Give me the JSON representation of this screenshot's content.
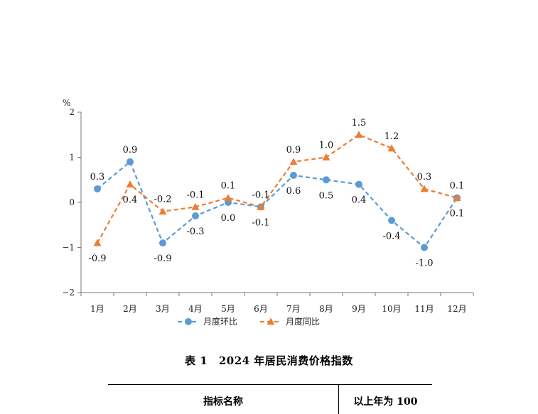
{
  "chart_data": {
    "type": "line",
    "ylabel": "%",
    "ylim": [
      -2,
      2
    ],
    "yticks": [
      "2",
      "1",
      "0",
      "−1",
      "−2"
    ],
    "yticks_values": [
      2,
      1,
      0,
      -1,
      -2
    ],
    "categories": [
      "1月",
      "2月",
      "3月",
      "4月",
      "5月",
      "6月",
      "7月",
      "8月",
      "9月",
      "10月",
      "11月",
      "12月"
    ],
    "series": [
      {
        "name": "月度环比",
        "color": "#5b9bd5",
        "marker": "circle",
        "values": [
          0.3,
          0.9,
          -0.9,
          -0.3,
          0.0,
          -0.1,
          0.6,
          0.5,
          0.4,
          -0.4,
          -1.0,
          0.1
        ],
        "labels": [
          "0.3",
          "0.9",
          "-0.9",
          "-0.3",
          "0.0",
          "-0.1",
          "0.6",
          "0.5",
          "0.4",
          "-0.4",
          "-1.0",
          "0.1"
        ]
      },
      {
        "name": "月度同比",
        "color": "#ed7d31",
        "marker": "triangle",
        "values": [
          -0.9,
          0.4,
          -0.2,
          -0.1,
          0.1,
          -0.1,
          0.9,
          1.0,
          1.5,
          1.2,
          0.3,
          0.1
        ],
        "labels": [
          "-0.9",
          "0.4",
          "-0.2",
          "-0.1",
          "0.1",
          "-0.1",
          "0.9",
          "1.0",
          "1.5",
          "1.2",
          "0.3",
          "0.1"
        ]
      }
    ],
    "legend": "bottom"
  },
  "table": {
    "title": "表 1　2024 年居民消费价格指数",
    "headers": [
      "指标名称",
      "以上年为 100"
    ]
  }
}
